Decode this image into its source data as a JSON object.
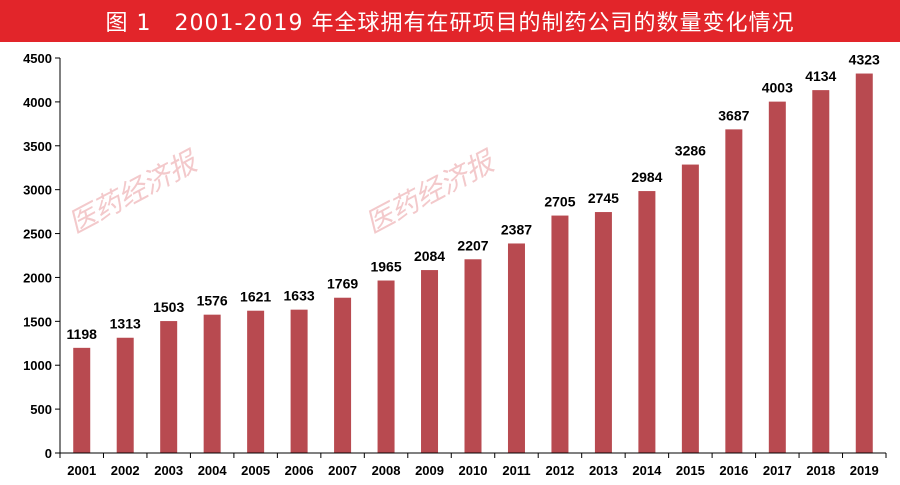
{
  "header": {
    "title": "图 1　2001-2019 年全球拥有在研项目的制药公司的数量变化情况"
  },
  "watermark": "医药经济报",
  "colors": {
    "title_bg": "#e2252a",
    "bar": "#b84a50",
    "axis": "#000000"
  },
  "chart_data": {
    "type": "bar",
    "title": "图 1　2001-2019 年全球拥有在研项目的制药公司的数量变化情况",
    "xlabel": "",
    "ylabel": "",
    "categories": [
      "2001",
      "2002",
      "2003",
      "2004",
      "2005",
      "2006",
      "2007",
      "2008",
      "2009",
      "2010",
      "2011",
      "2012",
      "2013",
      "2014",
      "2015",
      "2016",
      "2017",
      "2018",
      "2019"
    ],
    "values": [
      1198,
      1313,
      1503,
      1576,
      1621,
      1633,
      1769,
      1965,
      2084,
      2207,
      2387,
      2705,
      2745,
      2984,
      3286,
      3687,
      4003,
      4134,
      4323
    ],
    "ylim": [
      0,
      4500
    ],
    "yticks": [
      0,
      500,
      1000,
      1500,
      2000,
      2500,
      3000,
      3500,
      4000,
      4500
    ],
    "grid": false,
    "legend": "none"
  }
}
